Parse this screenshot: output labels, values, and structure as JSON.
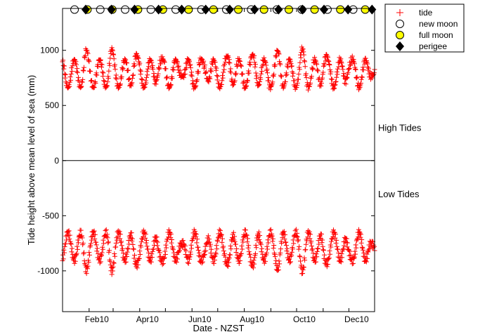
{
  "chart_data": {
    "type": "scatter",
    "title": "",
    "xlabel": "Date - NZST",
    "ylabel": "Tide height above mean level of sea (mm)",
    "xlim": [
      1,
      365
    ],
    "ylim": [
      -1370,
      1380
    ],
    "yticks": [
      -1000,
      -500,
      0,
      500,
      1000
    ],
    "xticks": [
      {
        "day": 41,
        "label": "Feb10"
      },
      {
        "day": 100,
        "label": "Apr10"
      },
      {
        "day": 161,
        "label": "Jun10"
      },
      {
        "day": 222,
        "label": "Aug10"
      },
      {
        "day": 283,
        "label": "Oct10"
      },
      {
        "day": 344,
        "label": "Dec10"
      }
    ],
    "minor_xticks": [
      1,
      32,
      60,
      91,
      121,
      152,
      182,
      213,
      244,
      274,
      305,
      335
    ],
    "zero_line": true,
    "annotations": [
      {
        "text": "High Tides",
        "anchor": 300
      },
      {
        "text": "Low Tides",
        "anchor": -300
      }
    ],
    "legend": {
      "placement": "outside-top-right",
      "entries": [
        {
          "label": "tide",
          "marker": "plus",
          "color": "#ff0000"
        },
        {
          "label": "new moon",
          "marker": "circle",
          "color": "#ffffff"
        },
        {
          "label": "full moon",
          "marker": "circle",
          "color": "#ffff00"
        },
        {
          "label": "perigee",
          "marker": "diamond",
          "color": "#000000"
        }
      ]
    },
    "event_row_y": 1370,
    "new_moon_days": [
      15,
      45,
      74,
      104,
      133,
      163,
      192,
      221,
      251,
      280,
      310,
      340
    ],
    "full_moon_days": [
      30,
      59,
      89,
      118,
      148,
      177,
      206,
      236,
      265,
      295,
      325,
      354
    ],
    "perigee_days": [
      28,
      58,
      85,
      113,
      140,
      168,
      196,
      225,
      253,
      281,
      306,
      334,
      362
    ],
    "tide_model": {
      "high_mean": 800,
      "low_mean": -790,
      "amplitude": 230,
      "readings_per_day": 2,
      "perigee_days": [
        28,
        58,
        85,
        113,
        140,
        168,
        196,
        225,
        253,
        281,
        306,
        334,
        362
      ]
    },
    "series": [
      {
        "name": "tide",
        "color": "#ff0000",
        "marker": "plus"
      }
    ]
  }
}
